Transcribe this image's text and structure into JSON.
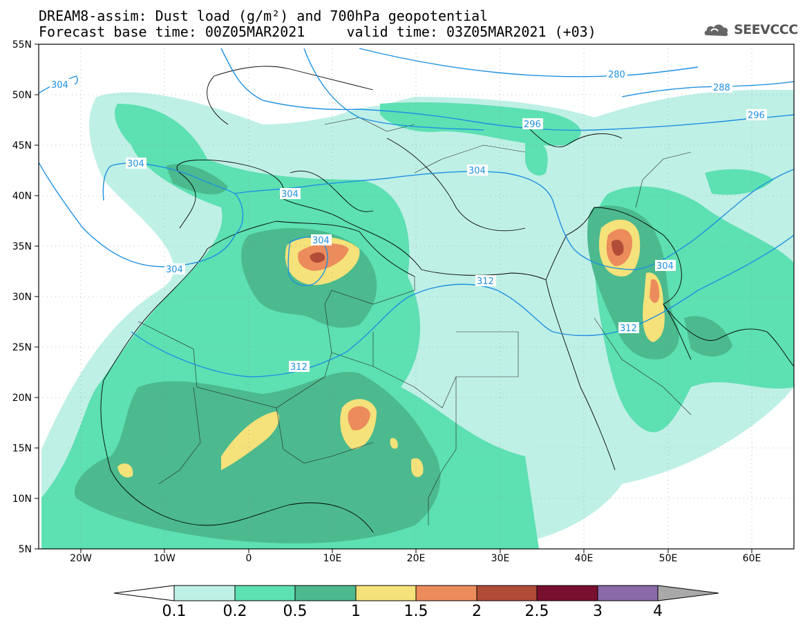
{
  "header": {
    "line1": "DREAM8-assim: Dust load (g/m²) and 700hPa geopotential",
    "line2": "Forecast base time: 00Z05MAR2021     valid time: 03Z05MAR2021 (+03)"
  },
  "logo": {
    "text": "SEEVCCC",
    "icon": "cloud-logo-icon"
  },
  "axes": {
    "lon_labels": [
      "20W",
      "10W",
      "0",
      "10E",
      "20E",
      "30E",
      "40E",
      "50E",
      "60E"
    ],
    "lat_labels": [
      "55N",
      "50N",
      "45N",
      "40N",
      "35N",
      "30N",
      "25N",
      "20N",
      "15N",
      "10N",
      "5N"
    ],
    "lon_range": [
      -25,
      65
    ],
    "lat_range": [
      5,
      55
    ]
  },
  "contour_labels": [
    "304",
    "280",
    "288",
    "296",
    "296",
    "304",
    "304",
    "304",
    "304",
    "304",
    "312",
    "304",
    "312",
    "312"
  ],
  "colorbar": {
    "ticks": [
      "0.1",
      "0.2",
      "0.5",
      "1",
      "1.5",
      "2",
      "2.5",
      "3",
      "4"
    ],
    "colors": [
      "#ffffff",
      "#bff0e6",
      "#5de0b2",
      "#4cb98e",
      "#f5e27a",
      "#ec8c5c",
      "#b04c38",
      "#7a1030",
      "#8a6aa8",
      "#a9a9a9"
    ]
  },
  "colors": {
    "contour": "#1e90e0",
    "border": "#000000",
    "light": "#bff0e6",
    "green": "#5de0b2",
    "dark": "#4cb98e",
    "yellow": "#f5e27a",
    "orange": "#ec8c5c",
    "red": "#b04c38"
  }
}
